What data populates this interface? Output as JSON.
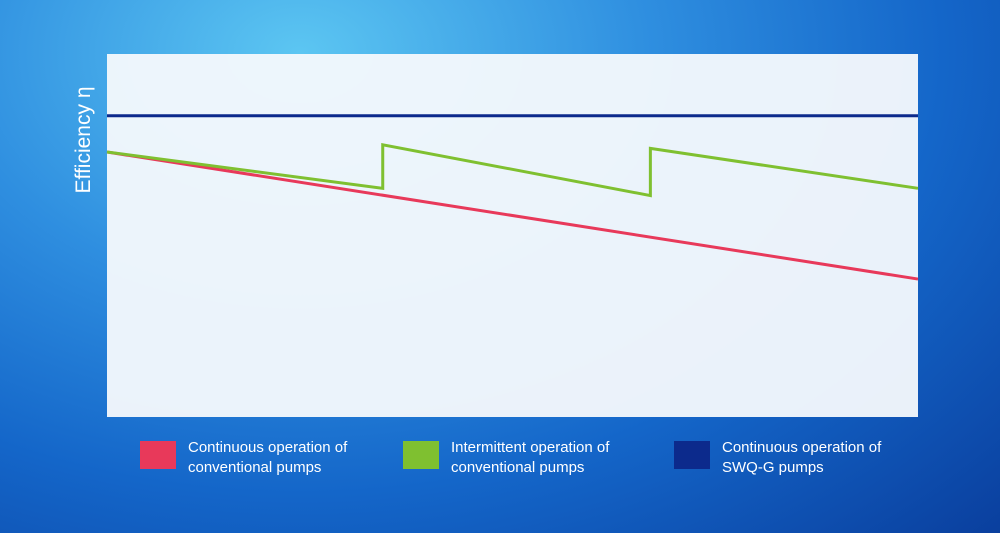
{
  "chart_data": {
    "type": "line",
    "y_label": "Efficiency η",
    "xlim": [
      0,
      100
    ],
    "ylim": [
      0,
      100
    ],
    "series": [
      {
        "name": "Continuous operation of conventional pumps",
        "color": "#e8395a",
        "x": [
          0,
          100
        ],
        "values": [
          73,
          38
        ]
      },
      {
        "name": "Intermittent operation of conventional pumps",
        "color": "#7fc030",
        "x": [
          0,
          34,
          34,
          67,
          67,
          100
        ],
        "values": [
          73,
          63,
          75,
          61,
          74,
          63
        ]
      },
      {
        "name": "Continuous operation of SWQ-G pumps",
        "color": "#0c2a8c",
        "x": [
          0,
          100
        ],
        "values": [
          83,
          83
        ]
      }
    ]
  }
}
